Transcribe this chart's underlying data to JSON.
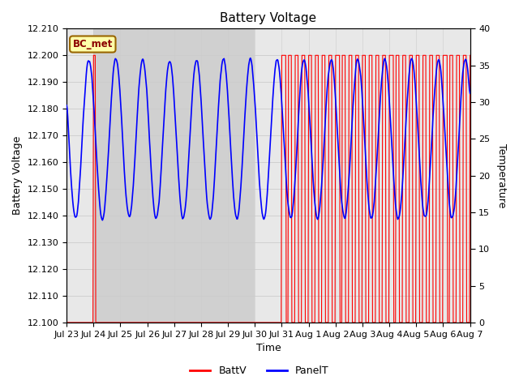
{
  "title": "Battery Voltage",
  "xlabel": "Time",
  "ylabel_left": "Battery Voltage",
  "ylabel_right": "Temperature",
  "ylim_left": [
    12.1,
    12.21
  ],
  "ylim_right": [
    0,
    40
  ],
  "yticks_left": [
    12.1,
    12.11,
    12.12,
    12.13,
    12.14,
    12.15,
    12.16,
    12.17,
    12.18,
    12.19,
    12.2,
    12.21
  ],
  "yticks_right": [
    0,
    5,
    10,
    15,
    20,
    25,
    30,
    35,
    40
  ],
  "xtick_labels": [
    "Jul 23",
    "Jul 24",
    "Jul 25",
    "Jul 26",
    "Jul 27",
    "Jul 28",
    "Jul 29",
    "Jul 30",
    "Jul 31",
    "Aug 1",
    "Aug 2",
    "Aug 3",
    "Aug 4",
    "Aug 5",
    "Aug 6",
    "Aug 7"
  ],
  "annotation_text": "BC_met",
  "annotation_bg": "#FFFFAA",
  "annotation_border": "#996600",
  "legend_labels": [
    "BattV",
    "PanelT"
  ],
  "line_colors": [
    "red",
    "blue"
  ],
  "grid_color": "#cccccc",
  "plot_bg_color": "#e8e8e8",
  "shade_color": "#d0d0d0",
  "title_fontsize": 11,
  "label_fontsize": 9,
  "tick_fontsize": 8
}
